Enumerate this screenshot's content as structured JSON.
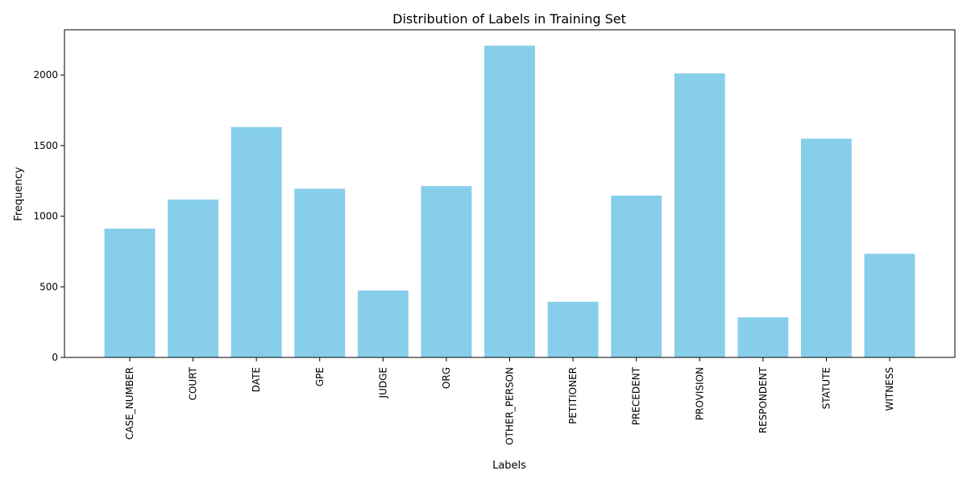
{
  "chart_data": {
    "type": "bar",
    "title": "Distribution of Labels in Training Set",
    "xlabel": "Labels",
    "ylabel": "Frequency",
    "categories": [
      "CASE_NUMBER",
      "COURT",
      "DATE",
      "GPE",
      "JUDGE",
      "ORG",
      "OTHER_PERSON",
      "PETITIONER",
      "PRECEDENT",
      "PROVISION",
      "RESPONDENT",
      "STATUTE",
      "WITNESS"
    ],
    "values": [
      912,
      1118,
      1631,
      1195,
      474,
      1213,
      2208,
      394,
      1146,
      2011,
      284,
      1549,
      734
    ],
    "ylim": [
      0,
      2320
    ],
    "yticks": [
      0,
      500,
      1000,
      1500,
      2000
    ],
    "grid": false,
    "legend": "none",
    "bar_color": "#87ceeb"
  }
}
